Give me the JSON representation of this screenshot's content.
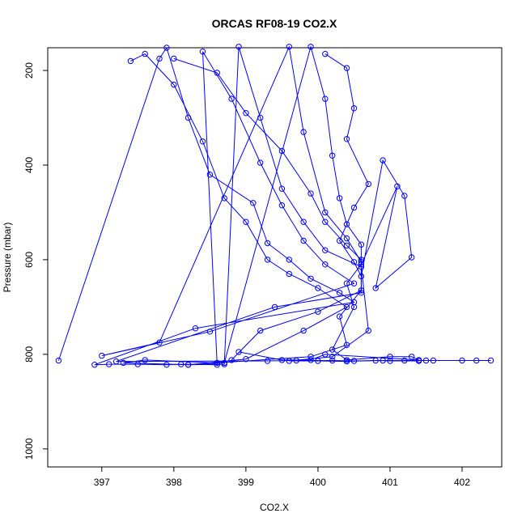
{
  "chart_data": {
    "type": "line",
    "title": "ORCAS RF08-19 CO2.X",
    "xlabel": "CO2.X",
    "ylabel": "Pressure (mbar)",
    "xlim": [
      396.25,
      402.55
    ],
    "ylim": [
      1038,
      152
    ],
    "y_reversed": true,
    "x_ticks": [
      397,
      398,
      399,
      400,
      401,
      402
    ],
    "y_ticks": [
      200,
      400,
      600,
      800,
      1000
    ],
    "grid": false,
    "series_color": "#0000ff",
    "marker": "open-circle",
    "series": [
      {
        "points": [
          [
            396.4,
            813
          ],
          [
            397.8,
            175
          ],
          [
            397.9,
            152
          ],
          [
            398.2,
            300
          ],
          [
            398.5,
            420
          ],
          [
            399.1,
            480
          ],
          [
            399.3,
            565
          ],
          [
            399.6,
            600
          ],
          [
            399.9,
            640
          ],
          [
            400.3,
            670
          ],
          [
            400.5,
            690
          ],
          [
            398.3,
            745
          ],
          [
            396.9,
            822
          ],
          [
            397.1,
            821
          ],
          [
            397.5,
            821
          ],
          [
            397.9,
            822
          ],
          [
            398.1,
            821
          ],
          [
            398.6,
            822
          ],
          [
            398.4,
            160
          ],
          [
            398.8,
            260
          ],
          [
            399.2,
            395
          ],
          [
            399.5,
            485
          ],
          [
            399.8,
            560
          ],
          [
            400.1,
            610
          ],
          [
            400.5,
            650
          ],
          [
            398.5,
            752
          ],
          [
            397.0,
            803
          ],
          [
            397.8,
            775
          ],
          [
            399.6,
            150
          ],
          [
            399.8,
            330
          ],
          [
            400.1,
            500
          ],
          [
            400.4,
            555
          ],
          [
            400.6,
            605
          ],
          [
            400.6,
            670
          ],
          [
            399.4,
            700
          ],
          [
            397.2,
            815
          ],
          [
            399.3,
            814
          ],
          [
            399.7,
            813
          ],
          [
            400.2,
            813
          ],
          [
            400.5,
            814
          ],
          [
            400.9,
            813
          ],
          [
            401.2,
            813
          ],
          [
            401.5,
            813
          ],
          [
            401.6,
            813
          ],
          [
            402.0,
            813
          ],
          [
            402.2,
            813
          ],
          [
            402.4,
            813
          ]
        ]
      },
      {
        "points": [
          [
            397.4,
            180
          ],
          [
            397.6,
            165
          ],
          [
            398.0,
            230
          ],
          [
            398.4,
            350
          ],
          [
            398.7,
            470
          ],
          [
            399.0,
            520
          ],
          [
            399.3,
            600
          ],
          [
            399.6,
            630
          ],
          [
            400.0,
            660
          ],
          [
            400.4,
            700
          ],
          [
            399.8,
            750
          ],
          [
            399.0,
            810
          ],
          [
            398.2,
            822
          ],
          [
            398.7,
            821
          ],
          [
            398.9,
            150
          ],
          [
            399.2,
            300
          ],
          [
            399.5,
            450
          ],
          [
            399.8,
            520
          ],
          [
            400.1,
            580
          ],
          [
            400.6,
            615
          ],
          [
            400.7,
            750
          ],
          [
            400.2,
            805
          ],
          [
            399.6,
            814
          ],
          [
            400.0,
            814
          ],
          [
            400.4,
            815
          ],
          [
            400.8,
            813
          ],
          [
            401.0,
            814
          ],
          [
            401.4,
            814
          ]
        ]
      },
      {
        "points": [
          [
            400.1,
            165
          ],
          [
            400.4,
            195
          ],
          [
            400.5,
            280
          ],
          [
            400.4,
            345
          ],
          [
            400.7,
            440
          ],
          [
            400.5,
            490
          ],
          [
            400.3,
            560
          ],
          [
            400.5,
            605
          ],
          [
            400.6,
            635
          ],
          [
            400.9,
            390
          ],
          [
            401.2,
            465
          ],
          [
            401.3,
            595
          ],
          [
            400.8,
            660
          ],
          [
            401.1,
            445
          ],
          [
            400.6,
            610
          ],
          [
            400.4,
            650
          ],
          [
            400.5,
            700
          ],
          [
            400.2,
            790
          ],
          [
            400.4,
            812
          ],
          [
            401.0,
            805
          ],
          [
            401.3,
            805
          ],
          [
            401.4,
            812
          ],
          [
            400.1,
            800
          ],
          [
            399.9,
            812
          ],
          [
            399.5,
            812
          ],
          [
            398.9,
            795
          ]
        ]
      },
      {
        "points": [
          [
            398.0,
            175
          ],
          [
            398.6,
            205
          ],
          [
            399.0,
            290
          ],
          [
            399.5,
            370
          ],
          [
            399.9,
            460
          ],
          [
            400.1,
            520
          ],
          [
            400.4,
            570
          ],
          [
            400.6,
            600
          ],
          [
            400.6,
            665
          ],
          [
            400.3,
            720
          ],
          [
            400.4,
            780
          ],
          [
            399.9,
            805
          ],
          [
            398.6,
            818
          ],
          [
            397.6,
            812
          ],
          [
            397.3,
            818
          ],
          [
            398.2,
            822
          ],
          [
            398.7,
            818
          ],
          [
            399.9,
            150
          ],
          [
            400.1,
            260
          ],
          [
            400.2,
            380
          ],
          [
            400.3,
            470
          ],
          [
            400.4,
            525
          ],
          [
            400.6,
            568
          ],
          [
            400.6,
            665
          ],
          [
            400.0,
            710
          ],
          [
            399.2,
            750
          ],
          [
            398.8,
            812
          ]
        ]
      }
    ]
  }
}
